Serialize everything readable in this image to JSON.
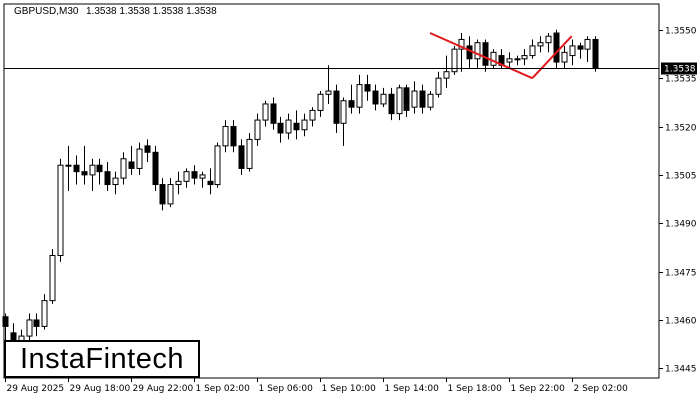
{
  "header": {
    "symbol": "GBPUSD,M30",
    "ohlc": "1.3538 1.3538 1.3538 1.3538"
  },
  "logo": {
    "text": "InstaFintech"
  },
  "colors": {
    "pattern": "#e3181b",
    "bull": "#ffffff",
    "bear": "#000000",
    "price_line": "#000000"
  },
  "chart_data": {
    "type": "candlestick",
    "title": "GBPUSD,M30",
    "ylim": [
      1.3442,
      1.3558
    ],
    "y_ticks": [
      "1.3550",
      "1.3535",
      "1.3520",
      "1.3505",
      "1.3490",
      "1.3475",
      "1.3460",
      "1.3445"
    ],
    "x_ticks": [
      "29 Aug 2025",
      "29 Aug 18:00",
      "29 Aug 22:00",
      "1 Sep 02:00",
      "1 Sep 06:00",
      "1 Sep 10:00",
      "1 Sep 14:00",
      "1 Sep 18:00",
      "1 Sep 22:00",
      "2 Sep 02:00"
    ],
    "current_price": "1.3538",
    "pattern_lines": [
      {
        "from": {
          "bar": 54,
          "price": 1.3549
        },
        "to": {
          "bar": 67,
          "price": 1.3535
        }
      },
      {
        "from": {
          "bar": 67,
          "price": 1.3535
        },
        "to": {
          "bar": 72,
          "price": 1.3548
        }
      }
    ],
    "candles": [
      [
        1.3461,
        1.3462,
        1.3451,
        1.3458
      ],
      [
        1.3456,
        1.3459,
        1.3449,
        1.3452
      ],
      [
        1.3452,
        1.3457,
        1.3448,
        1.3455
      ],
      [
        1.3455,
        1.3462,
        1.3453,
        1.346
      ],
      [
        1.346,
        1.3462,
        1.3455,
        1.3458
      ],
      [
        1.3458,
        1.3468,
        1.3457,
        1.3466
      ],
      [
        1.3466,
        1.3482,
        1.3465,
        1.348
      ],
      [
        1.348,
        1.351,
        1.3478,
        1.3508
      ],
      [
        1.3508,
        1.3514,
        1.35,
        1.3508
      ],
      [
        1.3508,
        1.3511,
        1.3502,
        1.3506
      ],
      [
        1.3506,
        1.3514,
        1.3502,
        1.3505
      ],
      [
        1.3505,
        1.351,
        1.35,
        1.3508
      ],
      [
        1.3508,
        1.351,
        1.3502,
        1.3506
      ],
      [
        1.3506,
        1.3509,
        1.35,
        1.3502
      ],
      [
        1.3502,
        1.3506,
        1.3499,
        1.3504
      ],
      [
        1.3504,
        1.3512,
        1.3502,
        1.351
      ],
      [
        1.3509,
        1.3514,
        1.3505,
        1.3507
      ],
      [
        1.3507,
        1.3515,
        1.3505,
        1.3513
      ],
      [
        1.3514,
        1.3516,
        1.3509,
        1.3512
      ],
      [
        1.3512,
        1.3514,
        1.35,
        1.3502
      ],
      [
        1.3502,
        1.3504,
        1.3494,
        1.3496
      ],
      [
        1.3496,
        1.3504,
        1.3495,
        1.3502
      ],
      [
        1.3502,
        1.3506,
        1.3499,
        1.3503
      ],
      [
        1.3503,
        1.3507,
        1.3501,
        1.3506
      ],
      [
        1.3506,
        1.3508,
        1.3502,
        1.3504
      ],
      [
        1.3504,
        1.3506,
        1.3501,
        1.3505
      ],
      [
        1.3503,
        1.3507,
        1.3499,
        1.3502
      ],
      [
        1.3502,
        1.3515,
        1.3501,
        1.3514
      ],
      [
        1.3514,
        1.3522,
        1.3512,
        1.352
      ],
      [
        1.352,
        1.3522,
        1.3512,
        1.3514
      ],
      [
        1.3514,
        1.3516,
        1.3505,
        1.3507
      ],
      [
        1.3507,
        1.3518,
        1.3506,
        1.3516
      ],
      [
        1.3516,
        1.3524,
        1.3514,
        1.3522
      ],
      [
        1.3522,
        1.3528,
        1.352,
        1.3527
      ],
      [
        1.3527,
        1.3529,
        1.3519,
        1.3521
      ],
      [
        1.3521,
        1.3523,
        1.3515,
        1.3518
      ],
      [
        1.3518,
        1.3524,
        1.3516,
        1.3522
      ],
      [
        1.3521,
        1.3525,
        1.3516,
        1.3519
      ],
      [
        1.3519,
        1.3524,
        1.3517,
        1.3522
      ],
      [
        1.3522,
        1.3526,
        1.352,
        1.3525
      ],
      [
        1.3525,
        1.3531,
        1.3523,
        1.353
      ],
      [
        1.353,
        1.3539,
        1.3527,
        1.3531
      ],
      [
        1.3531,
        1.3533,
        1.3518,
        1.3521
      ],
      [
        1.3521,
        1.3529,
        1.3514,
        1.3528
      ],
      [
        1.3528,
        1.3533,
        1.3524,
        1.3526
      ],
      [
        1.3526,
        1.3536,
        1.3524,
        1.3533
      ],
      [
        1.3533,
        1.3536,
        1.3528,
        1.3531
      ],
      [
        1.3531,
        1.3533,
        1.3525,
        1.3527
      ],
      [
        1.3527,
        1.3532,
        1.3526,
        1.353
      ],
      [
        1.353,
        1.3532,
        1.3522,
        1.3524
      ],
      [
        1.3524,
        1.3533,
        1.3522,
        1.3532
      ],
      [
        1.3532,
        1.3533,
        1.3523,
        1.3525
      ],
      [
        1.3526,
        1.3534,
        1.3524,
        1.3531
      ],
      [
        1.3531,
        1.3533,
        1.3524,
        1.3526
      ],
      [
        1.3526,
        1.3531,
        1.3525,
        1.353
      ],
      [
        1.353,
        1.3537,
        1.3529,
        1.3535
      ],
      [
        1.3535,
        1.3542,
        1.3532,
        1.3537
      ],
      [
        1.3537,
        1.3545,
        1.3536,
        1.3544
      ],
      [
        1.3544,
        1.3549,
        1.3537,
        1.3547
      ],
      [
        1.3545,
        1.3548,
        1.3538,
        1.3541
      ],
      [
        1.3541,
        1.3547,
        1.3538,
        1.3546
      ],
      [
        1.3546,
        1.3547,
        1.3537,
        1.3539
      ],
      [
        1.3539,
        1.3544,
        1.3538,
        1.3543
      ],
      [
        1.3542,
        1.3544,
        1.3538,
        1.3539
      ],
      [
        1.354,
        1.3543,
        1.3538,
        1.3541
      ],
      [
        1.3541,
        1.3542,
        1.3539,
        1.3541
      ],
      [
        1.3541,
        1.3544,
        1.3539,
        1.3542
      ],
      [
        1.3542,
        1.3547,
        1.3541,
        1.3545
      ],
      [
        1.3545,
        1.3548,
        1.3543,
        1.3546
      ],
      [
        1.3546,
        1.3549,
        1.3543,
        1.3548
      ],
      [
        1.3549,
        1.355,
        1.3538,
        1.354
      ],
      [
        1.354,
        1.3545,
        1.3538,
        1.3543
      ],
      [
        1.3542,
        1.3547,
        1.3539,
        1.3545
      ],
      [
        1.3545,
        1.3546,
        1.3541,
        1.3544
      ],
      [
        1.3544,
        1.3548,
        1.354,
        1.3547
      ],
      [
        1.3547,
        1.3548,
        1.3537,
        1.3538
      ]
    ]
  }
}
